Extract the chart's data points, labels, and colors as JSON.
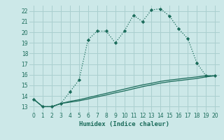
{
  "xlabel": "Humidex (Indice chaleur)",
  "bg_color": "#cce8e8",
  "grid_color": "#aacfcf",
  "line_color": "#1a6b5a",
  "xlim": [
    -0.5,
    20.5
  ],
  "ylim": [
    12.5,
    22.5
  ],
  "xticks": [
    0,
    1,
    2,
    3,
    4,
    5,
    6,
    7,
    8,
    9,
    10,
    11,
    12,
    13,
    14,
    15,
    16,
    17,
    18,
    19,
    20
  ],
  "yticks": [
    13,
    14,
    15,
    16,
    17,
    18,
    19,
    20,
    21,
    22
  ],
  "main_x": [
    0,
    1,
    2,
    3,
    4,
    5,
    6,
    7,
    8,
    9,
    10,
    11,
    12,
    13,
    14,
    15,
    16,
    17,
    18,
    19,
    20
  ],
  "main_y": [
    13.7,
    13.0,
    13.0,
    13.3,
    14.4,
    15.5,
    19.3,
    20.1,
    20.1,
    19.0,
    20.1,
    21.6,
    21.0,
    22.1,
    22.2,
    21.5,
    20.3,
    19.4,
    17.1,
    15.9,
    15.9
  ],
  "line2_x": [
    0,
    1,
    2,
    3,
    4,
    5,
    6,
    7,
    8,
    9,
    10,
    11,
    12,
    13,
    14,
    15,
    16,
    17,
    18,
    19,
    20
  ],
  "line2_y": [
    13.7,
    13.0,
    13.0,
    13.3,
    13.5,
    13.65,
    13.85,
    14.05,
    14.25,
    14.45,
    14.65,
    14.85,
    15.05,
    15.2,
    15.38,
    15.5,
    15.6,
    15.7,
    15.8,
    15.9,
    15.9
  ],
  "line3_x": [
    0,
    1,
    2,
    3,
    4,
    5,
    6,
    7,
    8,
    9,
    10,
    11,
    12,
    13,
    14,
    15,
    16,
    17,
    18,
    19,
    20
  ],
  "line3_y": [
    13.7,
    13.0,
    13.0,
    13.3,
    13.42,
    13.55,
    13.72,
    13.92,
    14.1,
    14.3,
    14.48,
    14.68,
    14.88,
    15.05,
    15.22,
    15.35,
    15.45,
    15.55,
    15.65,
    15.8,
    15.9
  ]
}
